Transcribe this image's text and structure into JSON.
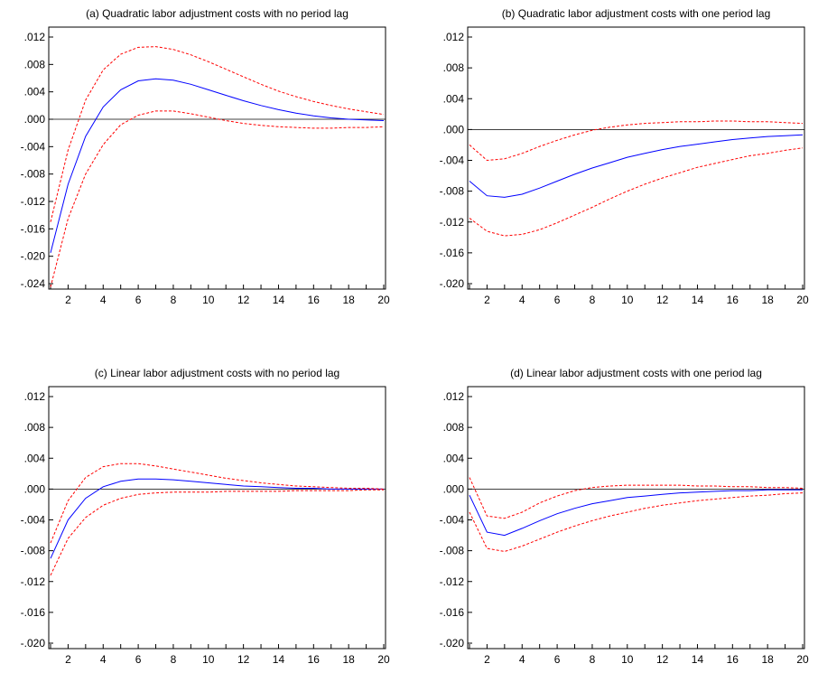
{
  "chart_data": [
    {
      "type": "line",
      "title": "(a) Quadratic labor adjustment costs with no period lag",
      "ylim": [
        -0.024,
        0.012
      ],
      "yticks": [
        ".012",
        ".008",
        ".004",
        ".000",
        "-.004",
        "-.008",
        "-.012",
        "-.016",
        "-.020",
        "-.024"
      ],
      "xticks": [
        "2",
        "4",
        "6",
        "8",
        "10",
        "12",
        "14",
        "16",
        "18",
        "20"
      ],
      "x": [
        1,
        2,
        3,
        4,
        5,
        6,
        7,
        8,
        9,
        10,
        11,
        12,
        13,
        14,
        15,
        16,
        17,
        18,
        19,
        20
      ],
      "series": [
        {
          "role": "response",
          "color": "#0000ff",
          "dashed": false,
          "values": [
            -0.0195,
            -0.0095,
            -0.0025,
            0.0018,
            0.0043,
            0.0056,
            0.0059,
            0.0057,
            0.0051,
            0.0043,
            0.0035,
            0.0027,
            0.002,
            0.0014,
            0.0009,
            0.0005,
            0.0002,
            0.0,
            -0.0001,
            -0.0002
          ]
        },
        {
          "role": "upper",
          "color": "#ff0000",
          "dashed": true,
          "values": [
            -0.015,
            -0.0045,
            0.0028,
            0.0072,
            0.0095,
            0.0105,
            0.0106,
            0.0102,
            0.0094,
            0.0084,
            0.0073,
            0.0062,
            0.0051,
            0.0041,
            0.0033,
            0.0026,
            0.002,
            0.0015,
            0.0011,
            0.0007
          ]
        },
        {
          "role": "lower",
          "color": "#ff0000",
          "dashed": true,
          "values": [
            -0.0245,
            -0.0145,
            -0.008,
            -0.0037,
            -0.0008,
            0.0006,
            0.0012,
            0.0012,
            0.0008,
            0.0003,
            -0.0002,
            -0.0006,
            -0.0009,
            -0.0011,
            -0.0012,
            -0.0013,
            -0.0013,
            -0.0012,
            -0.0012,
            -0.0011
          ]
        }
      ]
    },
    {
      "type": "line",
      "title": "(b) Quadratic labor adjustment costs with one period lag",
      "ylim": [
        -0.02,
        0.012
      ],
      "yticks": [
        ".012",
        ".008",
        ".004",
        ".000",
        "-.004",
        "-.008",
        "-.012",
        "-.016",
        "-.020"
      ],
      "xticks": [
        "2",
        "4",
        "6",
        "8",
        "10",
        "12",
        "14",
        "16",
        "18",
        "20"
      ],
      "x": [
        1,
        2,
        3,
        4,
        5,
        6,
        7,
        8,
        9,
        10,
        11,
        12,
        13,
        14,
        15,
        16,
        17,
        18,
        19,
        20
      ],
      "series": [
        {
          "role": "response",
          "color": "#0000ff",
          "dashed": false,
          "values": [
            -0.0067,
            -0.0086,
            -0.0088,
            -0.0084,
            -0.0076,
            -0.0067,
            -0.0058,
            -0.005,
            -0.0043,
            -0.0036,
            -0.0031,
            -0.0026,
            -0.0022,
            -0.0019,
            -0.0016,
            -0.0013,
            -0.0011,
            -0.0009,
            -0.0008,
            -0.0007
          ]
        },
        {
          "role": "upper",
          "color": "#ff0000",
          "dashed": true,
          "values": [
            -0.002,
            -0.004,
            -0.0038,
            -0.0031,
            -0.0022,
            -0.0014,
            -0.0007,
            -0.0001,
            0.0003,
            0.0006,
            0.0008,
            0.0009,
            0.001,
            0.001,
            0.0011,
            0.0011,
            0.001,
            0.001,
            0.0009,
            0.0008
          ]
        },
        {
          "role": "lower",
          "color": "#ff0000",
          "dashed": true,
          "values": [
            -0.0115,
            -0.0132,
            -0.0138,
            -0.0136,
            -0.013,
            -0.0121,
            -0.0111,
            -0.0101,
            -0.009,
            -0.008,
            -0.0071,
            -0.0063,
            -0.0056,
            -0.0049,
            -0.0044,
            -0.0039,
            -0.0034,
            -0.0031,
            -0.0027,
            -0.0024
          ]
        }
      ]
    },
    {
      "type": "line",
      "title": "(c) Linear labor adjustment costs with no period lag",
      "ylim": [
        -0.02,
        0.012
      ],
      "yticks": [
        ".012",
        ".008",
        ".004",
        ".000",
        "-.004",
        "-.008",
        "-.012",
        "-.016",
        "-.020"
      ],
      "xticks": [
        "2",
        "4",
        "6",
        "8",
        "10",
        "12",
        "14",
        "16",
        "18",
        "20"
      ],
      "x": [
        1,
        2,
        3,
        4,
        5,
        6,
        7,
        8,
        9,
        10,
        11,
        12,
        13,
        14,
        15,
        16,
        17,
        18,
        19,
        20
      ],
      "series": [
        {
          "role": "response",
          "color": "#0000ff",
          "dashed": false,
          "values": [
            -0.009,
            -0.004,
            -0.0012,
            0.0003,
            0.001,
            0.0013,
            0.0013,
            0.0012,
            0.001,
            0.0008,
            0.0006,
            0.0004,
            0.0003,
            0.0002,
            0.0001,
            0.0001,
            0.0,
            0.0,
            0.0,
            0.0
          ]
        },
        {
          "role": "upper",
          "color": "#ff0000",
          "dashed": true,
          "values": [
            -0.007,
            -0.0015,
            0.0015,
            0.0029,
            0.0033,
            0.0033,
            0.003,
            0.0026,
            0.0022,
            0.0018,
            0.0014,
            0.0011,
            0.0008,
            0.0006,
            0.0004,
            0.0003,
            0.0002,
            0.0001,
            0.0001,
            0.0
          ]
        },
        {
          "role": "lower",
          "color": "#ff0000",
          "dashed": true,
          "values": [
            -0.0112,
            -0.0064,
            -0.0037,
            -0.0021,
            -0.0012,
            -0.0007,
            -0.0005,
            -0.0004,
            -0.0004,
            -0.0004,
            -0.0003,
            -0.0003,
            -0.0003,
            -0.0003,
            -0.0002,
            -0.0002,
            -0.0002,
            -0.0002,
            -0.0001,
            -0.0001
          ]
        }
      ]
    },
    {
      "type": "line",
      "title": "(d) Linear labor adjustment costs with one period lag",
      "ylim": [
        -0.02,
        0.012
      ],
      "yticks": [
        ".012",
        ".008",
        ".004",
        ".000",
        "-.004",
        "-.008",
        "-.012",
        "-.016",
        "-.020"
      ],
      "xticks": [
        "2",
        "4",
        "6",
        "8",
        "10",
        "12",
        "14",
        "16",
        "18",
        "20"
      ],
      "x": [
        1,
        2,
        3,
        4,
        5,
        6,
        7,
        8,
        9,
        10,
        11,
        12,
        13,
        14,
        15,
        16,
        17,
        18,
        19,
        20
      ],
      "series": [
        {
          "role": "response",
          "color": "#0000ff",
          "dashed": false,
          "values": [
            -0.0008,
            -0.0056,
            -0.006,
            -0.0051,
            -0.0041,
            -0.0032,
            -0.0025,
            -0.0019,
            -0.0015,
            -0.0011,
            -0.0009,
            -0.0007,
            -0.0005,
            -0.0004,
            -0.0003,
            -0.0002,
            -0.0002,
            -0.0001,
            -0.0001,
            -0.0001
          ]
        },
        {
          "role": "upper",
          "color": "#ff0000",
          "dashed": true,
          "values": [
            0.0015,
            -0.0035,
            -0.0038,
            -0.003,
            -0.0018,
            -0.0009,
            -0.0002,
            0.0002,
            0.0004,
            0.0005,
            0.0005,
            0.0005,
            0.0005,
            0.0004,
            0.0004,
            0.0003,
            0.0003,
            0.0002,
            0.0002,
            0.0001
          ]
        },
        {
          "role": "lower",
          "color": "#ff0000",
          "dashed": true,
          "values": [
            -0.003,
            -0.0077,
            -0.0081,
            -0.0074,
            -0.0065,
            -0.0056,
            -0.0048,
            -0.0041,
            -0.0035,
            -0.003,
            -0.0025,
            -0.0021,
            -0.0018,
            -0.0015,
            -0.0013,
            -0.0011,
            -0.0009,
            -0.0008,
            -0.0006,
            -0.0005
          ]
        }
      ]
    }
  ]
}
